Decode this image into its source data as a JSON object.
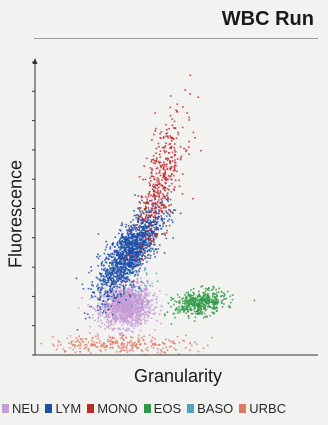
{
  "header": {
    "title": "WBC Run"
  },
  "chart_data": {
    "type": "scatter",
    "title": "WBC Run",
    "xlabel": "Granularity",
    "ylabel": "Fluorescence",
    "xlim": [
      0,
      100
    ],
    "ylim": [
      0,
      100
    ],
    "grid": false,
    "legend_placement": "bottom",
    "series": [
      {
        "name": "NEU",
        "color": "#c79bd6",
        "cluster": {
          "cx": 32,
          "cy": 17,
          "sx": 4.5,
          "sy": 3.5,
          "n": 1300,
          "rho": 0.1
        }
      },
      {
        "name": "LYM",
        "color": "#1f4fa8",
        "cluster": {
          "cx": 33,
          "cy": 35,
          "sx": 5.5,
          "sy": 7.5,
          "n": 1500,
          "rho": 0.75
        }
      },
      {
        "name": "MONO",
        "color": "#c0282a",
        "cluster": {
          "cx": 44,
          "cy": 58,
          "sx": 4.5,
          "sy": 12,
          "n": 450,
          "rho": 0.7
        }
      },
      {
        "name": "EOS",
        "color": "#2f9a45",
        "cluster": {
          "cx": 58,
          "cy": 18,
          "sx": 4.5,
          "sy": 2.2,
          "n": 450,
          "rho": 0.3
        }
      },
      {
        "name": "BASO",
        "color": "#4aa7b8",
        "cluster": {
          "cx": 38,
          "cy": 24,
          "sx": 3,
          "sy": 3,
          "n": 25,
          "rho": 0
        }
      },
      {
        "name": "URBC",
        "color": "#e07a66",
        "cluster": {
          "cx": 30,
          "cy": 4,
          "sx": 13,
          "sy": 1.6,
          "n": 260,
          "rho": 0
        }
      }
    ]
  }
}
